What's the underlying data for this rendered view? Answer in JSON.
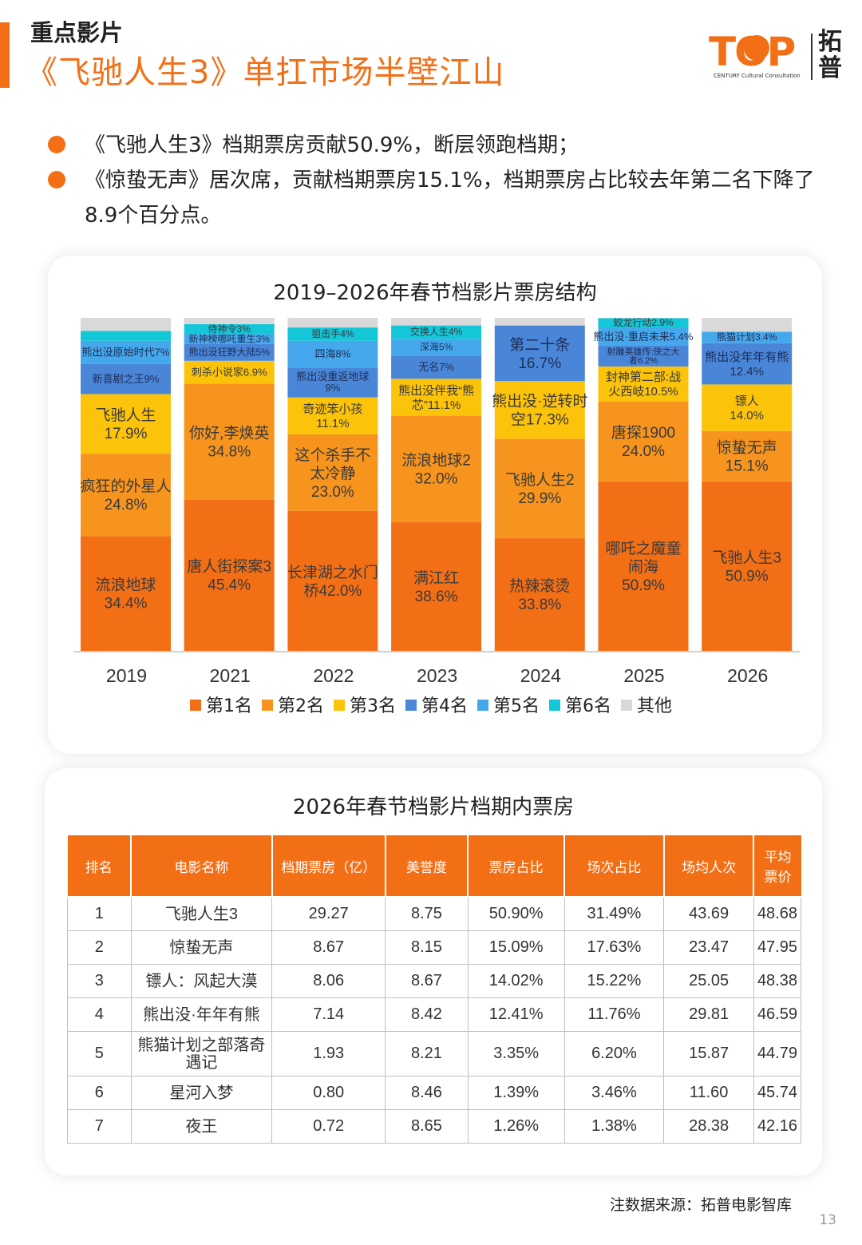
{
  "header": {
    "section": "重点影片",
    "headline": "《飞驰人生3》单扛市场半壁江山",
    "logo_word": "TOP",
    "logo_sub": "CENTURY  Cultural Consultation",
    "logo_cn": "拓普"
  },
  "bullets": [
    "《飞驰人生3》档期票房贡献50.9%，断层领跑档期；",
    "《惊蛰无声》居次席，贡献档期票房15.1%，档期票房占比较去年第二名下降了8.9个百分点。"
  ],
  "colors": {
    "accent": "#f36f16",
    "rank1": "#f36f16",
    "rank2": "#f7941d",
    "rank3": "#fcc30b",
    "rank4": "#4a86d8",
    "rank5": "#46a8ec",
    "rank6": "#13c6d8",
    "other": "#d9d9d9"
  },
  "chart_data": {
    "type": "bar",
    "stacked": true,
    "title": "2019–2026年春节档影片票房结构",
    "categories": [
      "2019",
      "2021",
      "2022",
      "2023",
      "2024",
      "2025",
      "2026"
    ],
    "legend": [
      "第1名",
      "第2名",
      "第3名",
      "第4名",
      "第5名",
      "第6名",
      "其他"
    ],
    "ylim": [
      0,
      100
    ],
    "series": [
      {
        "name": "第1名",
        "values": [
          34.4,
          45.4,
          42.0,
          38.6,
          33.8,
          50.9,
          50.9
        ],
        "labels": [
          "流浪地球\n34.4%",
          "唐人街探案3\n45.4%",
          "长津湖之水门\n桥42.0%",
          "满江红\n38.6%",
          "热辣滚烫\n33.8%",
          "哪吒之魔童\n闹海\n50.9%",
          "飞驰人生3\n50.9%"
        ]
      },
      {
        "name": "第2名",
        "values": [
          24.8,
          34.8,
          23.0,
          32.0,
          29.9,
          24.0,
          15.1
        ],
        "labels": [
          "疯狂的外星人\n24.8%",
          "你好,李焕英\n34.8%",
          "这个杀手不\n太冷静\n23.0%",
          "流浪地球2\n32.0%",
          "飞驰人生2\n29.9%",
          "唐探1900\n24.0%",
          "惊蛰无声\n15.1%"
        ]
      },
      {
        "name": "第3名",
        "values": [
          17.9,
          6.9,
          11.1,
          11.1,
          17.3,
          10.5,
          14.0
        ],
        "labels": [
          "飞驰人生\n17.9%",
          "刺杀小说家6.9%",
          "奇迹笨小孩\n11.1%",
          "熊出没伴我“熊\n芯”11.1%",
          "熊出没·逆转时\n空17.3%",
          "封神第二部:战\n火西岐10.5%",
          "镖人\n14.0%"
        ]
      },
      {
        "name": "第4名",
        "values": [
          9.0,
          5.0,
          9.0,
          7.0,
          16.7,
          6.2,
          12.4
        ],
        "labels": [
          "新喜剧之王9%",
          "熊出没狂野大陆5%",
          "熊出没重返地球\n9%",
          "无名7%",
          "第二十条\n16.7%",
          "射雕英雄传:侠之大\n者6.2%",
          "熊出没年年有熊\n12.4%"
        ]
      },
      {
        "name": "第5名",
        "values": [
          7.0,
          3.0,
          8.0,
          5.0,
          0.0,
          5.4,
          3.4
        ],
        "labels": [
          "熊出没原始时代7%",
          "新神榜哪吒重生3%",
          "四海8%",
          "深海5%",
          "",
          "熊出没·重启未来5.4%",
          "熊猫计划3.4%"
        ]
      },
      {
        "name": "第6名",
        "values": [
          3.0,
          3.0,
          4.0,
          4.0,
          0.0,
          2.9,
          0.0
        ],
        "labels": [
          "",
          "侍神令3%",
          "狙击手4%",
          "交换人生4%",
          "",
          "蛟龙行动2.9%",
          ""
        ]
      },
      {
        "name": "其他",
        "values": [
          3.9,
          1.9,
          2.9,
          2.3,
          2.3,
          0.1,
          4.2
        ],
        "labels": [
          "",
          "",
          "",
          "",
          "",
          "",
          ""
        ]
      }
    ]
  },
  "table": {
    "title": "2026年春节档影片档期内票房",
    "headers": [
      "排名",
      "电影名称",
      "档期票房（亿）",
      "美誉度",
      "票房占比",
      "场次占比",
      "场均人次",
      "平均票价"
    ],
    "rows": [
      [
        "1",
        "飞驰人生3",
        "29.27",
        "8.75",
        "50.90%",
        "31.49%",
        "43.69",
        "48.68"
      ],
      [
        "2",
        "惊蛰无声",
        "8.67",
        "8.15",
        "15.09%",
        "17.63%",
        "23.47",
        "47.95"
      ],
      [
        "3",
        "镖人：风起大漠",
        "8.06",
        "8.67",
        "14.02%",
        "15.22%",
        "25.05",
        "48.38"
      ],
      [
        "4",
        "熊出没·年年有熊",
        "7.14",
        "8.42",
        "12.41%",
        "11.76%",
        "29.81",
        "46.59"
      ],
      [
        "5",
        "熊猫计划之部落奇遇记",
        "1.93",
        "8.21",
        "3.35%",
        "6.20%",
        "15.87",
        "44.79"
      ],
      [
        "6",
        "星河入梦",
        "0.80",
        "8.46",
        "1.39%",
        "3.46%",
        "11.60",
        "45.74"
      ],
      [
        "7",
        "夜王",
        "0.72",
        "8.65",
        "1.26%",
        "1.38%",
        "28.38",
        "42.16"
      ]
    ]
  },
  "footer": {
    "source": "注数据来源：拓普电影智库",
    "page": "13"
  }
}
